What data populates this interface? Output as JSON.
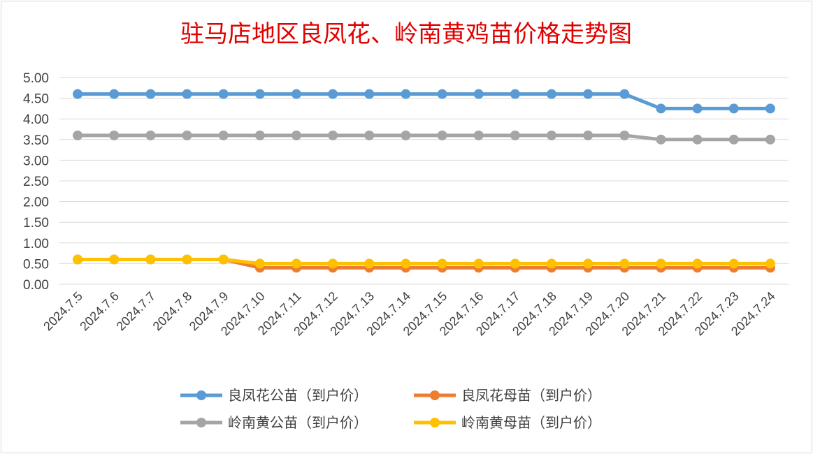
{
  "chart_data": {
    "type": "line",
    "title": "驻马店地区良凤花、岭南黄鸡苗价格走势图",
    "xlabel": "",
    "ylabel": "",
    "ylim": [
      0,
      5
    ],
    "yticks": [
      "0.00",
      "0.50",
      "1.00",
      "1.50",
      "2.00",
      "2.50",
      "3.00",
      "3.50",
      "4.00",
      "4.50",
      "5.00"
    ],
    "categories": [
      "2024.7.5",
      "2024.7.6",
      "2024.7.7",
      "2024.7.8",
      "2024.7.9",
      "2024.7.10",
      "2024.7.11",
      "2024.7.12",
      "2024.7.13",
      "2024.7.14",
      "2024.7.15",
      "2024.7.16",
      "2024.7.17",
      "2024.7.18",
      "2024.7.19",
      "2024.7.20",
      "2024.7.21",
      "2024.7.22",
      "2024.7.23",
      "2024.7.24"
    ],
    "grid": true,
    "legend_position": "bottom",
    "series": [
      {
        "name": "良凤花公苗（到户价）",
        "color": "#5b9bd5",
        "values": [
          4.6,
          4.6,
          4.6,
          4.6,
          4.6,
          4.6,
          4.6,
          4.6,
          4.6,
          4.6,
          4.6,
          4.6,
          4.6,
          4.6,
          4.6,
          4.6,
          4.25,
          4.25,
          4.25,
          4.25
        ]
      },
      {
        "name": "良凤花母苗（到户价）",
        "color": "#ed7d31",
        "values": [
          0.6,
          0.6,
          0.6,
          0.6,
          0.6,
          0.4,
          0.4,
          0.4,
          0.4,
          0.4,
          0.4,
          0.4,
          0.4,
          0.4,
          0.4,
          0.4,
          0.4,
          0.4,
          0.4,
          0.4
        ]
      },
      {
        "name": "岭南黄公苗（到户价）",
        "color": "#a5a5a5",
        "values": [
          3.6,
          3.6,
          3.6,
          3.6,
          3.6,
          3.6,
          3.6,
          3.6,
          3.6,
          3.6,
          3.6,
          3.6,
          3.6,
          3.6,
          3.6,
          3.6,
          3.5,
          3.5,
          3.5,
          3.5
        ]
      },
      {
        "name": "岭南黄母苗（到户价）",
        "color": "#ffc000",
        "values": [
          0.6,
          0.6,
          0.6,
          0.6,
          0.6,
          0.5,
          0.5,
          0.5,
          0.5,
          0.5,
          0.5,
          0.5,
          0.5,
          0.5,
          0.5,
          0.5,
          0.5,
          0.5,
          0.5,
          0.5
        ]
      }
    ]
  }
}
